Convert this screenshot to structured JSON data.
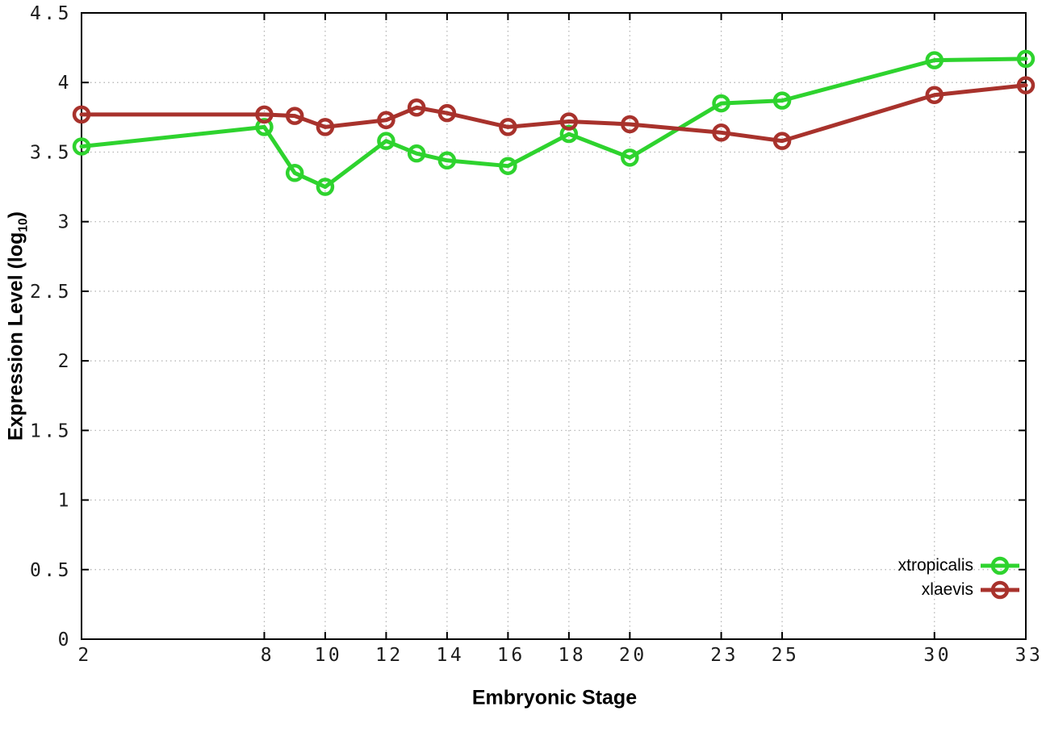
{
  "chart_data": {
    "type": "line",
    "title": "",
    "xlabel": "Embryonic Stage",
    "ylabel": "Expression Level (log10)",
    "ylabel_parts": {
      "pre": "Expression Level (log",
      "sub": "10",
      "post": ")"
    },
    "xlim": [
      2,
      33
    ],
    "ylim": [
      0,
      4.5
    ],
    "grid": true,
    "legend_position": "inside-bottom-right",
    "marker": "open-circle",
    "x": [
      2,
      8,
      9,
      10,
      12,
      13,
      14,
      16,
      18,
      20,
      23,
      25,
      30,
      33
    ],
    "x_ticks": [
      {
        "value": 2,
        "label": "2"
      },
      {
        "value": 8,
        "label": "8"
      },
      {
        "value": 10,
        "label": "10"
      },
      {
        "value": 12,
        "label": "12"
      },
      {
        "value": 14,
        "label": "14"
      },
      {
        "value": 16,
        "label": "16"
      },
      {
        "value": 18,
        "label": "18"
      },
      {
        "value": 20,
        "label": "20"
      },
      {
        "value": 23,
        "label": "23"
      },
      {
        "value": 25,
        "label": "25"
      },
      {
        "value": 30,
        "label": "30"
      },
      {
        "value": 33,
        "label": "33"
      }
    ],
    "y_ticks": [
      {
        "value": 0,
        "label": "0"
      },
      {
        "value": 0.5,
        "label": "0.5"
      },
      {
        "value": 1,
        "label": "1"
      },
      {
        "value": 1.5,
        "label": "1.5"
      },
      {
        "value": 2,
        "label": "2"
      },
      {
        "value": 2.5,
        "label": "2.5"
      },
      {
        "value": 3,
        "label": "3"
      },
      {
        "value": 3.5,
        "label": "3.5"
      },
      {
        "value": 4,
        "label": "4"
      },
      {
        "value": 4.5,
        "label": "4.5"
      }
    ],
    "series": [
      {
        "name": "xtropicalis",
        "color": "#2ed32e",
        "values": [
          3.54,
          3.68,
          3.35,
          3.25,
          3.58,
          3.49,
          3.44,
          3.4,
          3.63,
          3.46,
          3.85,
          3.87,
          4.16,
          4.17
        ]
      },
      {
        "name": "xlaevis",
        "color": "#a8322c",
        "values": [
          3.77,
          3.77,
          3.76,
          3.68,
          3.73,
          3.82,
          3.78,
          3.68,
          3.72,
          3.7,
          3.64,
          3.58,
          3.91,
          3.98
        ]
      }
    ],
    "colors": {
      "background": "#ffffff",
      "axis": "#000000",
      "grid": "#b0b0b0",
      "tick_label": "#1c1c1c"
    }
  }
}
